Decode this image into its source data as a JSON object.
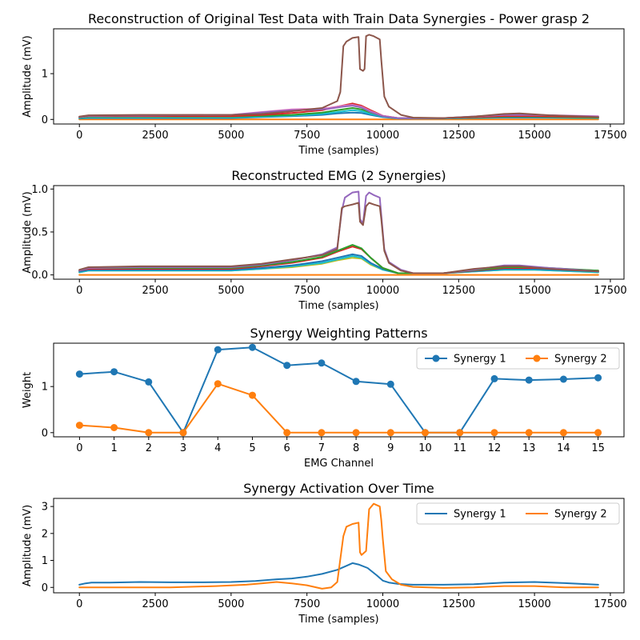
{
  "colors": {
    "tab_blue": "#1f77b4",
    "tab_orange": "#ff7f0e",
    "tab_green": "#2ca02c",
    "tab_red": "#d62728",
    "tab_purple": "#9467bd",
    "tab_brown": "#8c564b",
    "tab_pink": "#e377c2",
    "tab_gray": "#7f7f7f",
    "tab_olive": "#bcbd22",
    "tab_cyan": "#17becf"
  },
  "chart_data": [
    {
      "type": "line",
      "title": "Reconstruction of Original Test Data with Train Data Synergies - Power grasp 2",
      "xlabel": "Time (samples)",
      "ylabel": "Amplitude (mV)",
      "xlim": [
        -850,
        17950
      ],
      "ylim": [
        -0.1,
        1.98
      ],
      "xticks": [
        0,
        2500,
        5000,
        7500,
        10000,
        12500,
        15000,
        17500
      ],
      "xtick_labels": [
        "0",
        "2500",
        "5000",
        "7500",
        "10000",
        "12500",
        "15000",
        "17500"
      ],
      "yticks": [
        0,
        1
      ],
      "ytick_labels": [
        "0",
        "1"
      ],
      "legend": "none",
      "grid": false,
      "series": [
        {
          "color": "#ff7f0e",
          "x": [
            0,
            5000,
            10000,
            15000,
            17100
          ],
          "values": [
            0.0,
            0.0,
            0.0,
            0.0,
            0.0
          ]
        },
        {
          "color": "#1f77b4",
          "x": [
            0,
            300,
            5000,
            6000,
            7000,
            8000,
            8500,
            9000,
            9300,
            9600,
            10000,
            10500,
            12000,
            14000,
            15000,
            17100
          ],
          "values": [
            0.02,
            0.03,
            0.03,
            0.05,
            0.07,
            0.1,
            0.13,
            0.15,
            0.14,
            0.1,
            0.05,
            0.02,
            0.02,
            0.04,
            0.04,
            0.03
          ]
        },
        {
          "color": "#17becf",
          "x": [
            0,
            300,
            5000,
            6000,
            7000,
            8000,
            8500,
            9000,
            9300,
            9600,
            10000,
            10500,
            12000,
            14000,
            15000,
            17100
          ],
          "values": [
            0.03,
            0.04,
            0.04,
            0.06,
            0.08,
            0.12,
            0.16,
            0.2,
            0.18,
            0.12,
            0.06,
            0.02,
            0.02,
            0.05,
            0.05,
            0.03
          ]
        },
        {
          "color": "#2ca02c",
          "x": [
            0,
            300,
            5000,
            6000,
            7000,
            8000,
            8500,
            9000,
            9300,
            9600,
            10000,
            10500,
            12000,
            14000,
            15000,
            17100
          ],
          "values": [
            0.04,
            0.06,
            0.06,
            0.08,
            0.1,
            0.15,
            0.2,
            0.25,
            0.22,
            0.15,
            0.07,
            0.03,
            0.03,
            0.06,
            0.06,
            0.04
          ]
        },
        {
          "color": "#d62728",
          "x": [
            0,
            300,
            5000,
            6000,
            7000,
            8000,
            8500,
            9000,
            9300,
            9600,
            10000,
            10500,
            12000,
            14000,
            15000,
            17100
          ],
          "values": [
            0.05,
            0.07,
            0.07,
            0.1,
            0.14,
            0.2,
            0.28,
            0.35,
            0.3,
            0.2,
            0.08,
            0.03,
            0.03,
            0.07,
            0.07,
            0.05
          ]
        },
        {
          "color": "#e377c2",
          "x": [
            0,
            300,
            5000,
            5800,
            6500,
            7000,
            7700,
            8200,
            8700,
            9000,
            9300,
            9600,
            10000,
            10500,
            12000,
            14000,
            15000,
            17100
          ],
          "values": [
            0.05,
            0.08,
            0.1,
            0.15,
            0.19,
            0.22,
            0.23,
            0.25,
            0.3,
            0.32,
            0.28,
            0.18,
            0.08,
            0.03,
            0.03,
            0.1,
            0.1,
            0.07
          ]
        },
        {
          "color": "#9467bd",
          "x": [
            0,
            300,
            5000,
            5800,
            6500,
            7000,
            7700,
            8200,
            8700,
            9000,
            9300,
            9600,
            10000,
            10500,
            12000,
            14000,
            15000,
            17100
          ],
          "values": [
            0.05,
            0.08,
            0.1,
            0.14,
            0.18,
            0.2,
            0.21,
            0.23,
            0.28,
            0.3,
            0.26,
            0.16,
            0.07,
            0.03,
            0.03,
            0.1,
            0.1,
            0.06
          ]
        },
        {
          "color": "#8c564b",
          "x": [
            0,
            300,
            2000,
            5000,
            6000,
            7000,
            8000,
            8500,
            8600,
            8700,
            8800,
            9000,
            9200,
            9250,
            9350,
            9400,
            9450,
            9550,
            9700,
            9900,
            9950,
            10050,
            10200,
            10600,
            11000,
            12000,
            13000,
            14000,
            14500,
            15500,
            16000,
            17100
          ],
          "values": [
            0.06,
            0.09,
            0.1,
            0.1,
            0.12,
            0.18,
            0.25,
            0.4,
            0.6,
            1.6,
            1.7,
            1.78,
            1.8,
            1.1,
            1.06,
            1.1,
            1.82,
            1.85,
            1.82,
            1.75,
            1.3,
            0.5,
            0.28,
            0.1,
            0.04,
            0.03,
            0.06,
            0.12,
            0.13,
            0.09,
            0.08,
            0.05
          ]
        }
      ]
    },
    {
      "type": "line",
      "title": "Reconstructed EMG (2 Synergies)",
      "xlabel": "Time (samples)",
      "ylabel": "Amplitude (mV)",
      "xlim": [
        -850,
        17950
      ],
      "ylim": [
        -0.05,
        1.04
      ],
      "xticks": [
        0,
        2500,
        5000,
        7500,
        10000,
        12500,
        15000,
        17500
      ],
      "xtick_labels": [
        "0",
        "2500",
        "5000",
        "7500",
        "10000",
        "12500",
        "15000",
        "17500"
      ],
      "yticks": [
        0.0,
        0.5,
        1.0
      ],
      "ytick_labels": [
        "0.0",
        "0.5",
        "1.0"
      ],
      "legend": "none",
      "grid": false,
      "series": [
        {
          "color": "#ff7f0e",
          "x": [
            0,
            5000,
            10000,
            15000,
            17100
          ],
          "values": [
            0.0,
            0.0,
            0.0,
            0.0,
            0.0
          ]
        },
        {
          "color": "#bcbd22",
          "x": [
            0,
            300,
            5000,
            6000,
            7000,
            8000,
            8500,
            9000,
            9300,
            9600,
            10000,
            10500,
            12000,
            14000,
            15000,
            17100
          ],
          "values": [
            0.03,
            0.05,
            0.05,
            0.07,
            0.09,
            0.13,
            0.17,
            0.2,
            0.19,
            0.12,
            0.06,
            0.02,
            0.02,
            0.06,
            0.06,
            0.03
          ]
        },
        {
          "color": "#17becf",
          "x": [
            0,
            300,
            5000,
            6000,
            7000,
            8000,
            8500,
            9000,
            9300,
            9600,
            10000,
            10500,
            12000,
            14000,
            15000,
            17100
          ],
          "values": [
            0.03,
            0.05,
            0.05,
            0.07,
            0.1,
            0.14,
            0.18,
            0.22,
            0.2,
            0.13,
            0.06,
            0.02,
            0.02,
            0.06,
            0.06,
            0.03
          ]
        },
        {
          "color": "#1f77b4",
          "x": [
            0,
            300,
            5000,
            6000,
            7000,
            8000,
            8500,
            9000,
            9300,
            9600,
            10000,
            10500,
            12000,
            14000,
            15000,
            17100
          ],
          "values": [
            0.04,
            0.06,
            0.06,
            0.08,
            0.11,
            0.16,
            0.2,
            0.24,
            0.22,
            0.14,
            0.07,
            0.02,
            0.02,
            0.07,
            0.07,
            0.04
          ]
        },
        {
          "color": "#d62728",
          "x": [
            0,
            300,
            5000,
            6000,
            7000,
            8000,
            8500,
            9000,
            9300,
            9600,
            10000,
            10500,
            12000,
            14000,
            15000,
            17100
          ],
          "values": [
            0.05,
            0.07,
            0.07,
            0.1,
            0.14,
            0.2,
            0.27,
            0.33,
            0.3,
            0.2,
            0.08,
            0.02,
            0.02,
            0.08,
            0.08,
            0.05
          ]
        },
        {
          "color": "#2ca02c",
          "x": [
            0,
            300,
            5000,
            6000,
            7000,
            8000,
            8500,
            9000,
            9300,
            9600,
            10000,
            10500,
            12000,
            14000,
            15000,
            17100
          ],
          "values": [
            0.05,
            0.08,
            0.08,
            0.11,
            0.15,
            0.21,
            0.28,
            0.35,
            0.31,
            0.2,
            0.08,
            0.02,
            0.02,
            0.09,
            0.09,
            0.05
          ]
        },
        {
          "color": "#9467bd",
          "x": [
            0,
            300,
            2000,
            5000,
            6000,
            7000,
            8000,
            8500,
            8650,
            8750,
            9000,
            9200,
            9250,
            9350,
            9450,
            9550,
            9700,
            9900,
            9950,
            10050,
            10200,
            10600,
            11000,
            12000,
            13000,
            14000,
            14500,
            15500,
            16000,
            17100
          ],
          "values": [
            0.05,
            0.08,
            0.09,
            0.09,
            0.12,
            0.17,
            0.24,
            0.32,
            0.75,
            0.9,
            0.96,
            0.97,
            0.65,
            0.6,
            0.92,
            0.96,
            0.93,
            0.9,
            0.7,
            0.3,
            0.15,
            0.06,
            0.02,
            0.02,
            0.06,
            0.11,
            0.11,
            0.08,
            0.07,
            0.04
          ]
        },
        {
          "color": "#8c564b",
          "x": [
            0,
            300,
            2000,
            5000,
            6000,
            7000,
            8000,
            8500,
            8650,
            8750,
            9000,
            9200,
            9250,
            9350,
            9450,
            9550,
            9700,
            9900,
            9950,
            10050,
            10200,
            10600,
            11000,
            12000,
            13000,
            14000,
            14500,
            15500,
            16000,
            17100
          ],
          "values": [
            0.06,
            0.09,
            0.1,
            0.1,
            0.13,
            0.18,
            0.23,
            0.3,
            0.78,
            0.8,
            0.82,
            0.84,
            0.62,
            0.58,
            0.8,
            0.84,
            0.82,
            0.8,
            0.65,
            0.28,
            0.14,
            0.05,
            0.02,
            0.02,
            0.07,
            0.1,
            0.1,
            0.07,
            0.06,
            0.04
          ]
        }
      ]
    },
    {
      "type": "line",
      "title": "Synergy Weighting Patterns",
      "xlabel": "EMG Channel",
      "ylabel": "Weight",
      "xlim": [
        -0.75,
        15.75
      ],
      "ylim": [
        -0.09,
        1.94
      ],
      "xticks": [
        0,
        1,
        2,
        3,
        4,
        5,
        6,
        7,
        8,
        9,
        10,
        11,
        12,
        13,
        14,
        15
      ],
      "xtick_labels": [
        "0",
        "1",
        "2",
        "3",
        "4",
        "5",
        "6",
        "7",
        "8",
        "9",
        "10",
        "11",
        "12",
        "13",
        "14",
        "15"
      ],
      "yticks": [
        0,
        1
      ],
      "ytick_labels": [
        "0",
        "1"
      ],
      "legend": "top-right",
      "grid": false,
      "markers": true,
      "series": [
        {
          "name": "Synergy 1",
          "color": "#1f77b4",
          "x": [
            0,
            1,
            2,
            3,
            4,
            5,
            6,
            7,
            8,
            9,
            10,
            11,
            12,
            13,
            14,
            15
          ],
          "values": [
            1.27,
            1.32,
            1.1,
            0.0,
            1.8,
            1.85,
            1.46,
            1.51,
            1.11,
            1.05,
            0.0,
            0.0,
            1.17,
            1.14,
            1.16,
            1.19
          ]
        },
        {
          "name": "Synergy 2",
          "color": "#ff7f0e",
          "x": [
            0,
            1,
            2,
            3,
            4,
            5,
            6,
            7,
            8,
            9,
            10,
            11,
            12,
            13,
            14,
            15
          ],
          "values": [
            0.16,
            0.11,
            0.0,
            0.0,
            1.06,
            0.81,
            0.0,
            0.0,
            0.0,
            0.0,
            0.0,
            0.0,
            0.0,
            0.0,
            0.0,
            0.0
          ]
        }
      ]
    },
    {
      "type": "line",
      "title": "Synergy Activation Over Time",
      "xlabel": "Time (samples)",
      "ylabel": "Amplitude (mV)",
      "xlim": [
        -850,
        17950
      ],
      "ylim": [
        -0.2,
        3.3
      ],
      "xticks": [
        0,
        2500,
        5000,
        7500,
        10000,
        12500,
        15000,
        17500
      ],
      "xtick_labels": [
        "0",
        "2500",
        "5000",
        "7500",
        "10000",
        "12500",
        "15000",
        "17500"
      ],
      "yticks": [
        0,
        1,
        2,
        3
      ],
      "ytick_labels": [
        "0",
        "1",
        "2",
        "3"
      ],
      "legend": "top-right",
      "grid": false,
      "series": [
        {
          "name": "Synergy 1",
          "color": "#1f77b4",
          "x": [
            0,
            200,
            400,
            1000,
            2000,
            3000,
            4000,
            5000,
            5800,
            6500,
            7000,
            7500,
            8000,
            8500,
            8800,
            9000,
            9200,
            9500,
            9800,
            10000,
            10200,
            10500,
            11000,
            12000,
            13000,
            14000,
            15000,
            16000,
            17100
          ],
          "values": [
            0.1,
            0.15,
            0.18,
            0.18,
            0.2,
            0.19,
            0.19,
            0.2,
            0.24,
            0.3,
            0.33,
            0.4,
            0.5,
            0.65,
            0.8,
            0.9,
            0.85,
            0.72,
            0.45,
            0.25,
            0.18,
            0.13,
            0.1,
            0.1,
            0.12,
            0.18,
            0.2,
            0.16,
            0.1
          ]
        },
        {
          "name": "Synergy 2",
          "color": "#ff7f0e",
          "x": [
            0,
            1000,
            3000,
            4500,
            5500,
            6000,
            6500,
            7000,
            7500,
            8000,
            8300,
            8500,
            8700,
            8800,
            9000,
            9200,
            9250,
            9300,
            9450,
            9550,
            9700,
            9900,
            9950,
            10000,
            10100,
            10300,
            10600,
            11000,
            12000,
            13000,
            14000,
            15000,
            16000,
            17100
          ],
          "values": [
            0.0,
            0.0,
            0.0,
            0.05,
            0.1,
            0.15,
            0.2,
            0.15,
            0.08,
            -0.05,
            0.0,
            0.2,
            1.9,
            2.25,
            2.35,
            2.4,
            1.3,
            1.2,
            1.35,
            2.9,
            3.1,
            3.0,
            2.5,
            1.8,
            0.6,
            0.3,
            0.1,
            0.02,
            -0.02,
            0.0,
            0.05,
            0.05,
            0.0,
            0.0
          ]
        }
      ]
    }
  ]
}
